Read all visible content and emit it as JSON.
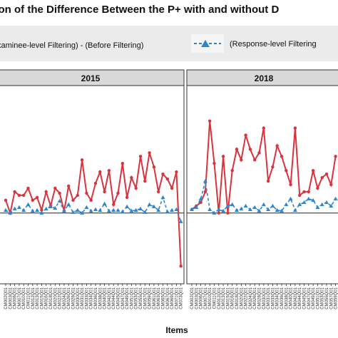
{
  "chart_data": {
    "type": "line",
    "title": "ison of the Difference Between the P+ with and without D",
    "xlabel": "Items",
    "legend": {
      "placement": "top",
      "entries": [
        {
          "label": "xaminee-level Filtering) - (Before Filtering)",
          "color": "#d9333d",
          "style": "solid-circle"
        },
        {
          "label": "(Response-level Filtering",
          "color": "#2e86d0",
          "style": "dashed-triangle"
        }
      ]
    },
    "reference_line": 0,
    "ylim": [
      -0.1,
      0.18
    ],
    "grid": false,
    "panels": [
      {
        "name": "2015",
        "x_tick_labels": [
          "CM002Q01",
          "CM003Q01",
          "CM006Q01",
          "CM007Q01",
          "CM010Q01",
          "CM011Q01",
          "CM012Q01",
          "CM013Q01",
          "CM015Q01",
          "CM016Q01",
          "CM018Q01",
          "CM020Q01",
          "CM022Q01",
          "CM024Q01",
          "CM026Q01",
          "CM028Q01",
          "CM030Q01",
          "CM031Q01",
          "CM033Q01",
          "CM034Q01",
          "CM036Q01",
          "CM038Q01",
          "CM040Q01",
          "CM042Q01",
          "CM044Q01",
          "CM045Q01",
          "CM047Q01",
          "CM049Q01",
          "CM051Q01",
          "CM053Q01",
          "CM055Q01",
          "CM057Q01",
          "CM059Q01",
          "CM061Q01",
          "CM063Q01",
          "CM065Q01",
          "CM067Q01",
          "CM069Q01",
          "CM071Q01",
          "CM073Q01"
        ],
        "series": [
          {
            "name": "xaminee-level Filtering) - (Before Filtering)",
            "values": [
              0.018,
              0.0,
              0.03,
              0.025,
              0.025,
              0.035,
              0.018,
              0.022,
              0.004,
              0.03,
              0.01,
              0.035,
              0.028,
              0.003,
              0.038,
              0.018,
              0.025,
              0.075,
              0.028,
              0.018,
              0.042,
              0.058,
              0.03,
              0.06,
              0.012,
              0.028,
              0.07,
              0.022,
              0.05,
              0.035,
              0.08,
              0.045,
              0.085,
              0.065,
              0.03,
              0.055,
              0.048,
              0.035,
              0.058,
              -0.075
            ]
          },
          {
            "name": "(Response-level Filtering",
            "values": [
              0.004,
              0.0,
              0.006,
              0.008,
              0.004,
              0.012,
              0.003,
              0.004,
              0.0,
              0.006,
              0.009,
              0.007,
              0.017,
              0.003,
              0.012,
              0.001,
              0.004,
              0.0,
              0.008,
              0.003,
              0.005,
              0.004,
              0.013,
              0.003,
              0.004,
              0.004,
              0.002,
              0.009,
              0.003,
              0.004,
              0.006,
              0.001,
              0.012,
              0.009,
              0.004,
              0.022,
              0.002,
              0.004,
              0.005,
              -0.012
            ]
          }
        ]
      },
      {
        "name": "2018",
        "x_tick_labels": [
          "CM002Q01",
          "CM003Q01",
          "CM006Q01",
          "CM007Q01",
          "CM010Q01",
          "CM011Q01",
          "CM012Q01",
          "CM013Q01",
          "CM015Q01",
          "CM016Q01",
          "CM018Q01",
          "CM020Q01",
          "CM022Q01",
          "CM024Q01",
          "CM026Q01",
          "CM028Q01",
          "CM030Q01",
          "CM031Q01",
          "CM033Q01",
          "CM034Q01",
          "CM036Q01",
          "CM038Q01",
          "CM040Q01",
          "CM042Q01",
          "CM044Q01",
          "CM045Q01",
          "CM047Q01",
          "CM049Q01",
          "CM051Q01",
          "CM053Q01",
          "CM055Q01",
          "CM057Q01",
          "CM059Q01"
        ],
        "series": [
          {
            "name": "xaminee-level Filtering) - (Before Filtering)",
            "values": [
              0.005,
              0.01,
              0.015,
              0.03,
              0.13,
              0.07,
              0.0,
              0.08,
              0.0,
              0.06,
              0.09,
              0.075,
              0.11,
              0.09,
              0.075,
              0.085,
              0.12,
              0.045,
              0.065,
              0.095,
              0.08,
              0.06,
              0.04,
              0.12,
              0.025,
              0.03,
              0.03,
              0.06,
              0.035,
              0.05,
              0.055,
              0.04,
              0.08
            ]
          },
          {
            "name": "(Response-level Filtering",
            "values": [
              0.005,
              0.008,
              0.02,
              0.045,
              0.005,
              0.0,
              0.005,
              0.003,
              0.01,
              0.012,
              0.004,
              0.006,
              0.01,
              0.005,
              0.008,
              0.003,
              0.012,
              0.005,
              0.01,
              0.004,
              0.003,
              0.012,
              0.02,
              0.004,
              0.012,
              0.015,
              0.02,
              0.018,
              0.008,
              0.012,
              0.015,
              0.01,
              0.02
            ]
          }
        ]
      }
    ]
  }
}
